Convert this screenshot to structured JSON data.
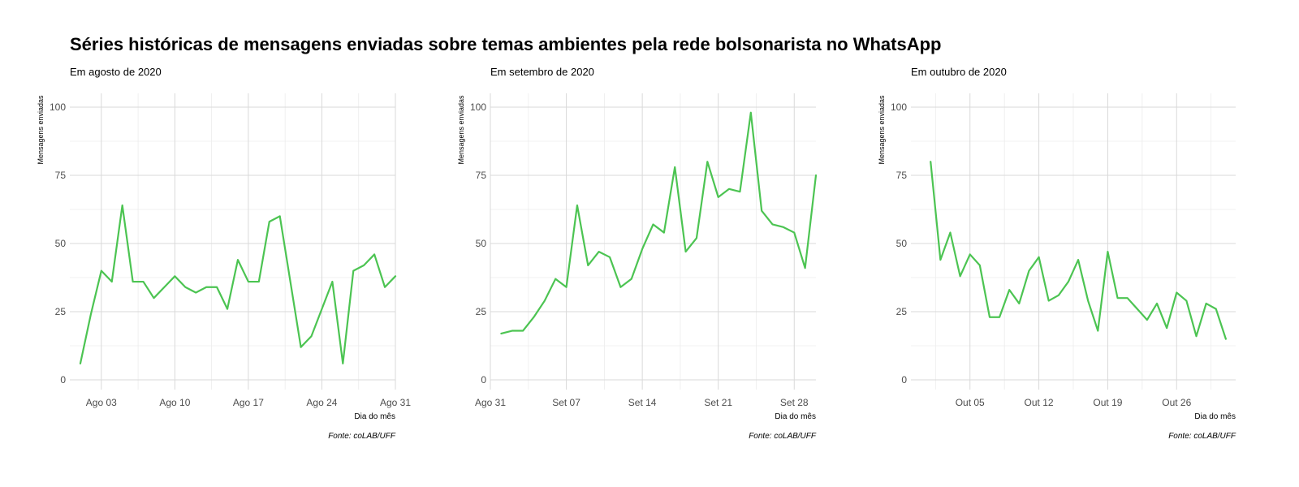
{
  "title": "Séries históricas de mensagens enviadas sobre temas ambientes pela rede bolsonarista no WhatsApp",
  "colors": {
    "line": "#4cc452",
    "grid_major": "#d9d9d9",
    "grid_minor": "#ececec",
    "text": "#4d4d4d"
  },
  "chart_data": [
    {
      "type": "line",
      "subtitle": "Em agosto de 2020",
      "xlabel": "Dia do mês",
      "ylabel": "Mensagens enviadas",
      "caption": "Fonte: coLAB/UFF",
      "ylim": [
        0,
        100
      ],
      "yticks": [
        0,
        25,
        50,
        75,
        100
      ],
      "xlim": [
        "2020-07-31",
        "2020-08-31"
      ],
      "xticks": [
        {
          "value": "2020-08-03",
          "label": "Ago 03"
        },
        {
          "value": "2020-08-10",
          "label": "Ago 10"
        },
        {
          "value": "2020-08-17",
          "label": "Ago 17"
        },
        {
          "value": "2020-08-24",
          "label": "Ago 24"
        },
        {
          "value": "2020-08-31",
          "label": "Ago 31"
        }
      ],
      "grid": true,
      "series": [
        {
          "x": [
            "2020-08-01",
            "2020-08-02",
            "2020-08-03",
            "2020-08-04",
            "2020-08-05",
            "2020-08-06",
            "2020-08-07",
            "2020-08-08",
            "2020-08-09",
            "2020-08-10",
            "2020-08-11",
            "2020-08-12",
            "2020-08-13",
            "2020-08-14",
            "2020-08-15",
            "2020-08-16",
            "2020-08-17",
            "2020-08-18",
            "2020-08-19",
            "2020-08-20",
            "2020-08-21",
            "2020-08-22",
            "2020-08-23",
            "2020-08-24",
            "2020-08-25",
            "2020-08-26",
            "2020-08-27",
            "2020-08-28",
            "2020-08-29",
            "2020-08-30",
            "2020-08-31"
          ],
          "y": [
            6,
            24,
            40,
            36,
            64,
            36,
            36,
            30,
            34,
            38,
            34,
            32,
            34,
            34,
            26,
            44,
            36,
            36,
            58,
            60,
            36,
            12,
            16,
            26,
            36,
            6,
            40,
            42,
            46,
            34,
            38
          ]
        }
      ]
    },
    {
      "type": "line",
      "subtitle": "Em setembro de 2020",
      "xlabel": "Dia do mês",
      "ylabel": "Mensagens enviadas",
      "caption": "Fonte: coLAB/UFF",
      "ylim": [
        0,
        100
      ],
      "yticks": [
        0,
        25,
        50,
        75,
        100
      ],
      "xlim": [
        "2020-08-31",
        "2020-09-30"
      ],
      "xticks": [
        {
          "value": "2020-08-31",
          "label": "Ago 31"
        },
        {
          "value": "2020-09-07",
          "label": "Set 07"
        },
        {
          "value": "2020-09-14",
          "label": "Set 14"
        },
        {
          "value": "2020-09-21",
          "label": "Set 21"
        },
        {
          "value": "2020-09-28",
          "label": "Set 28"
        }
      ],
      "grid": true,
      "series": [
        {
          "x": [
            "2020-09-01",
            "2020-09-02",
            "2020-09-03",
            "2020-09-04",
            "2020-09-05",
            "2020-09-06",
            "2020-09-07",
            "2020-09-08",
            "2020-09-09",
            "2020-09-10",
            "2020-09-11",
            "2020-09-12",
            "2020-09-13",
            "2020-09-14",
            "2020-09-15",
            "2020-09-16",
            "2020-09-17",
            "2020-09-18",
            "2020-09-19",
            "2020-09-20",
            "2020-09-21",
            "2020-09-22",
            "2020-09-23",
            "2020-09-24",
            "2020-09-25",
            "2020-09-26",
            "2020-09-27",
            "2020-09-28",
            "2020-09-29",
            "2020-09-30"
          ],
          "y": [
            17,
            18,
            18,
            23,
            29,
            37,
            34,
            64,
            42,
            47,
            45,
            34,
            37,
            48,
            57,
            54,
            78,
            47,
            52,
            80,
            67,
            70,
            69,
            98,
            62,
            57,
            56,
            54,
            41,
            75
          ]
        }
      ]
    },
    {
      "type": "line",
      "subtitle": "Em outubro de 2020",
      "xlabel": "Dia do mês",
      "ylabel": "Mensagens enviadas",
      "caption": "Fonte: coLAB/UFF",
      "ylim": [
        0,
        100
      ],
      "yticks": [
        0,
        25,
        50,
        75,
        100
      ],
      "xlim": [
        "2020-09-29",
        "2020-11-01"
      ],
      "xticks": [
        {
          "value": "2020-10-05",
          "label": "Out 05"
        },
        {
          "value": "2020-10-12",
          "label": "Out 12"
        },
        {
          "value": "2020-10-19",
          "label": "Out 19"
        },
        {
          "value": "2020-10-26",
          "label": "Out 26"
        }
      ],
      "grid": true,
      "series": [
        {
          "x": [
            "2020-10-01",
            "2020-10-02",
            "2020-10-03",
            "2020-10-04",
            "2020-10-05",
            "2020-10-06",
            "2020-10-07",
            "2020-10-08",
            "2020-10-09",
            "2020-10-10",
            "2020-10-11",
            "2020-10-12",
            "2020-10-13",
            "2020-10-14",
            "2020-10-15",
            "2020-10-16",
            "2020-10-17",
            "2020-10-18",
            "2020-10-19",
            "2020-10-20",
            "2020-10-21",
            "2020-10-22",
            "2020-10-23",
            "2020-10-24",
            "2020-10-25",
            "2020-10-26",
            "2020-10-27",
            "2020-10-28",
            "2020-10-29",
            "2020-10-30",
            "2020-10-31"
          ],
          "y": [
            80,
            44,
            54,
            38,
            46,
            42,
            23,
            23,
            33,
            28,
            40,
            45,
            29,
            31,
            36,
            44,
            29,
            18,
            47,
            30,
            30,
            26,
            22,
            28,
            19,
            32,
            29,
            16,
            28,
            26,
            15
          ]
        }
      ]
    }
  ]
}
